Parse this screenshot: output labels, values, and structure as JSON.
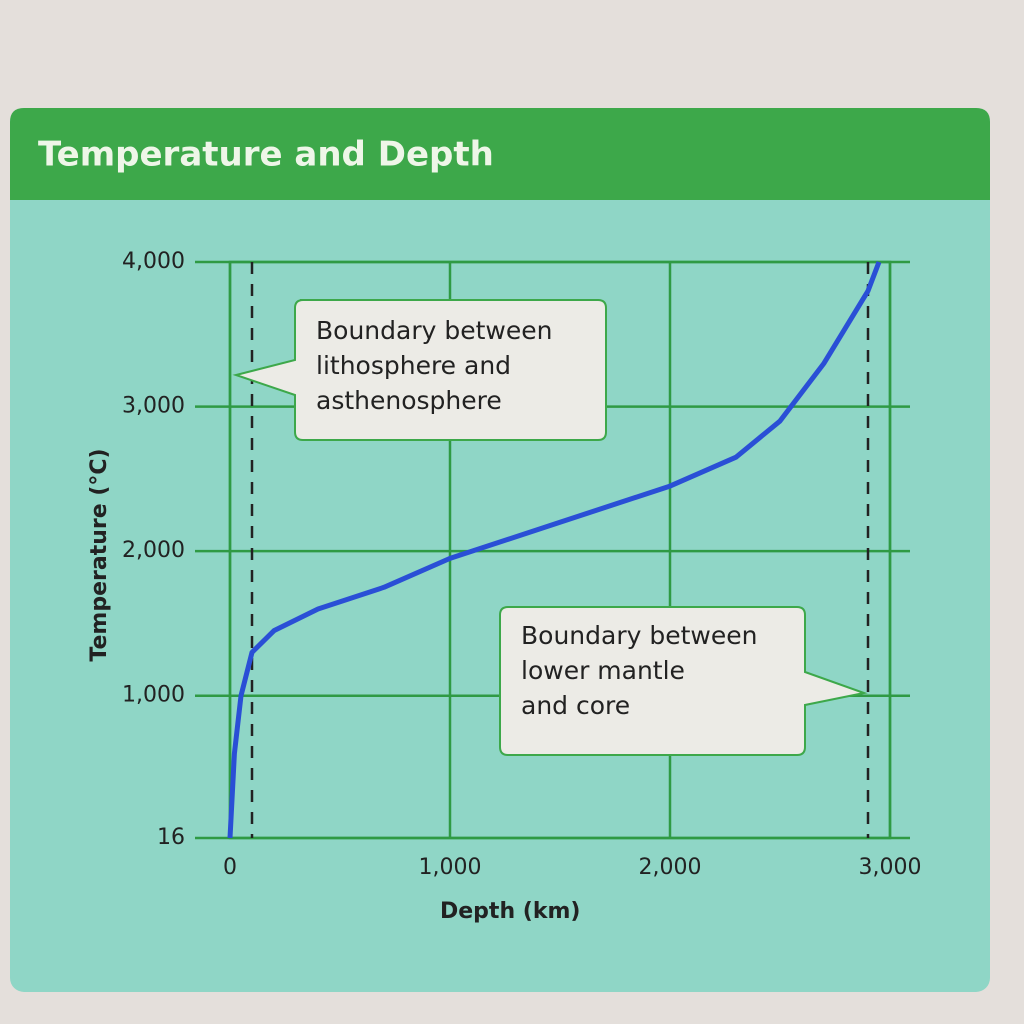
{
  "chart_data": {
    "type": "line",
    "title": "Temperature and Depth",
    "x_label": "Depth (km)",
    "y_label": "Temperature (°C)",
    "x": [
      0,
      20,
      50,
      100,
      200,
      400,
      700,
      1000,
      1500,
      2000,
      2300,
      2500,
      2700,
      2900,
      2950
    ],
    "values": [
      16,
      600,
      1000,
      1300,
      1450,
      1600,
      1750,
      1950,
      2200,
      2450,
      2650,
      2900,
      3300,
      3800,
      4000
    ],
    "color": "#2a4fd6",
    "xlim": [
      0,
      3000
    ],
    "xticks": [
      0,
      {
        "value": 1000,
        "label": "1,000"
      },
      {
        "value": 2000,
        "label": "2,000"
      },
      {
        "value": 3000,
        "label": "3,000"
      }
    ],
    "ylim": [
      16,
      4000
    ],
    "yticks": [
      16,
      {
        "value": 1000,
        "label": "1,000"
      },
      {
        "value": 2000,
        "label": "2,000"
      },
      {
        "value": 3000,
        "label": "3,000"
      },
      {
        "value": 4000,
        "label": "4,000"
      }
    ],
    "grid": true,
    "reference_x": [
      100,
      2900
    ],
    "annotations": [
      {
        "lines": [
          "Boundary between",
          "lithosphere and",
          "asthenosphere"
        ]
      },
      {
        "lines": [
          "Boundary between",
          "lower mantle",
          "and core"
        ]
      }
    ]
  }
}
